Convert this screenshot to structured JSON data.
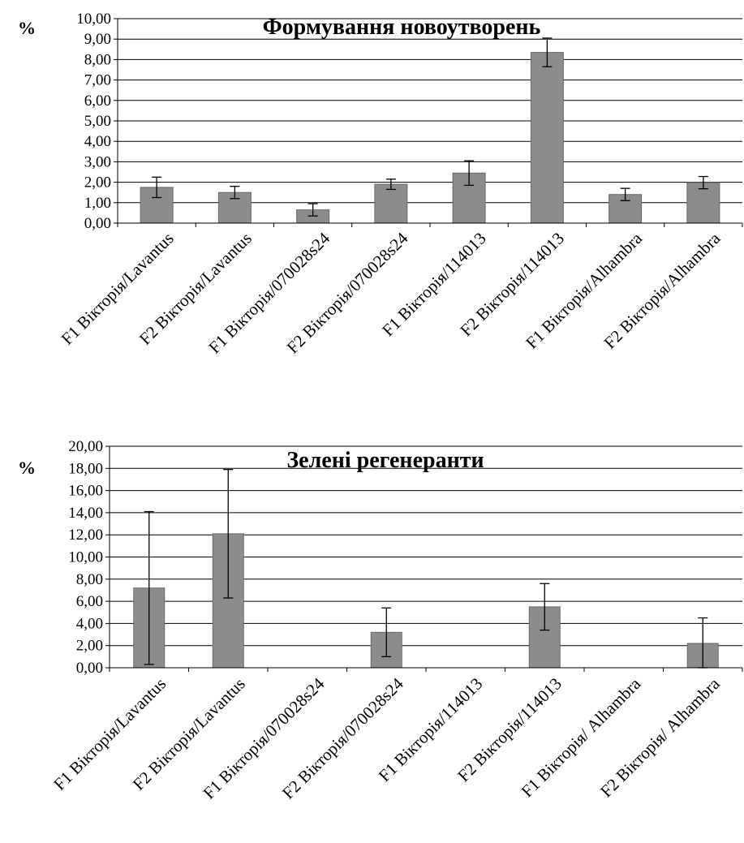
{
  "chart_data": [
    {
      "type": "bar",
      "title": "Формування новоутворень",
      "ylabel": "%",
      "xlabel": "",
      "ylim": [
        0,
        10
      ],
      "yticks": [
        "0,00",
        "1,00",
        "2,00",
        "3,00",
        "4,00",
        "5,00",
        "6,00",
        "7,00",
        "8,00",
        "9,00",
        "10,00"
      ],
      "categories": [
        "F1 Вікторія/Lavantus",
        "F2 Вікторія/Lavantus",
        "F1 Вікторія/070028s24",
        "F2 Вікторія/070028s24",
        "F1 Вікторія/114013",
        "F2 Вікторія/114013",
        "F1 Вікторія/Alhambra",
        "F2 Вікторія/Alhambra"
      ],
      "values": [
        1.75,
        1.5,
        0.65,
        1.9,
        2.45,
        8.35,
        1.4,
        1.98
      ],
      "errors": [
        0.5,
        0.3,
        0.3,
        0.25,
        0.6,
        0.7,
        0.3,
        0.3
      ],
      "grid": true,
      "legend": "none",
      "colors": {
        "bar": "#8c8c8c",
        "bar_edge": "#6a6a6a",
        "grid": "#000000"
      }
    },
    {
      "type": "bar",
      "title": "Зелені регенеранти",
      "ylabel": "%",
      "xlabel": "",
      "ylim": [
        0,
        20
      ],
      "yticks": [
        "0,00",
        "2,00",
        "4,00",
        "6,00",
        "8,00",
        "10,00",
        "12,00",
        "14,00",
        "16,00",
        "18,00",
        "20,00"
      ],
      "categories": [
        "F1 Вікторія/Lavantus",
        "F2 Вікторія/Lavantus",
        "F1 Вікторія/070028s24",
        "F2 Вікторія/070028s24",
        "F1 Вікторія/114013",
        "F2 Вікторія/114013",
        "F1 Вікторія/ Alhambra",
        "F2 Вікторія/ Alhambra"
      ],
      "values": [
        7.2,
        12.1,
        0,
        3.2,
        0,
        5.5,
        0,
        2.2
      ],
      "errors": [
        6.9,
        5.8,
        0,
        2.2,
        0,
        2.1,
        0,
        2.3
      ],
      "grid": true,
      "legend": "none",
      "colors": {
        "bar": "#8c8c8c",
        "bar_edge": "#6a6a6a",
        "grid": "#000000"
      }
    }
  ]
}
